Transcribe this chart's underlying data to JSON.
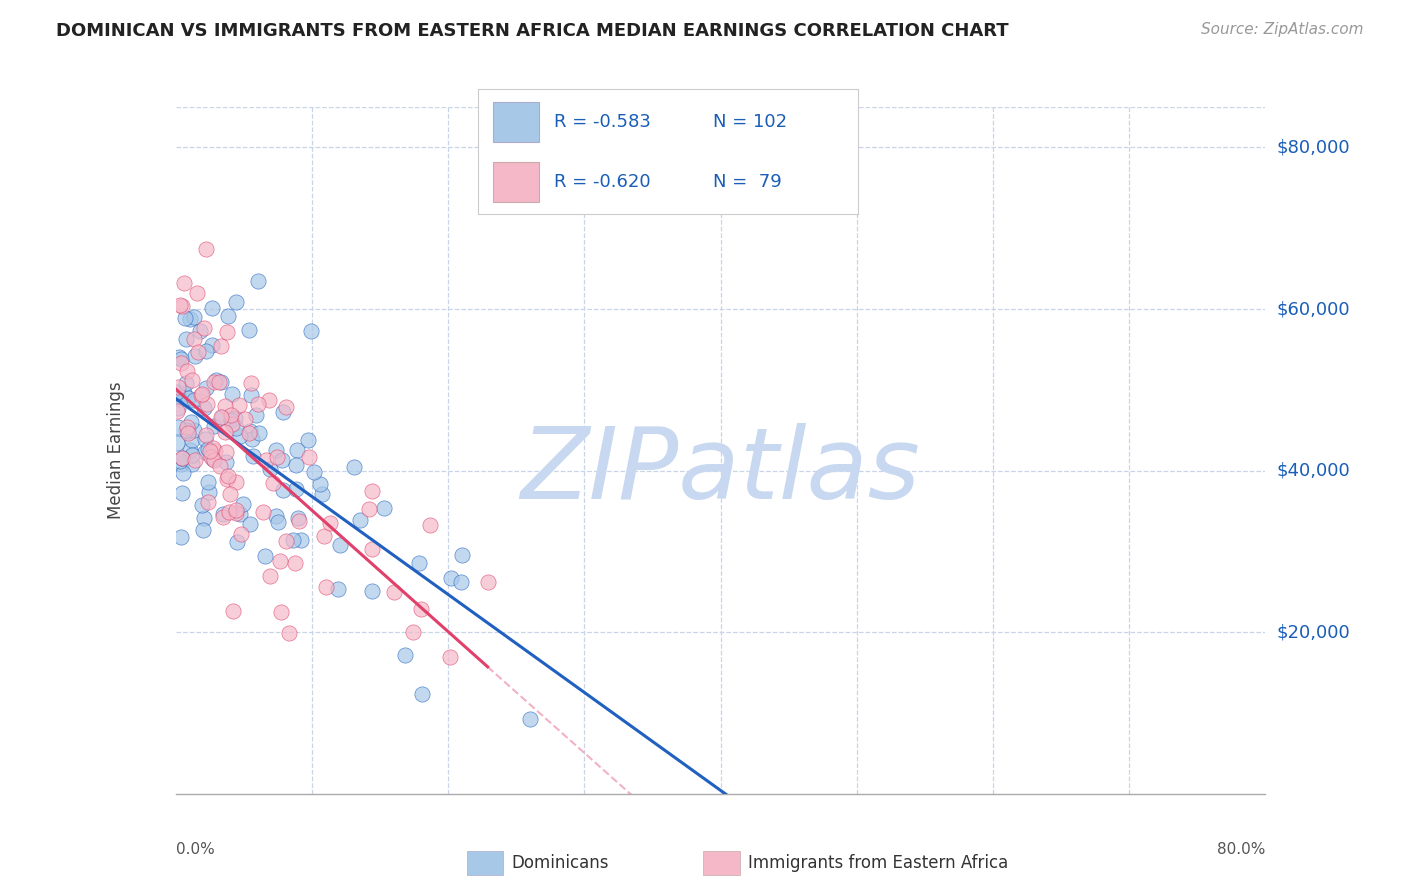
{
  "title": "DOMINICAN VS IMMIGRANTS FROM EASTERN AFRICA MEDIAN EARNINGS CORRELATION CHART",
  "source": "Source: ZipAtlas.com",
  "ylabel": "Median Earnings",
  "ytick_labels": [
    "$20,000",
    "$40,000",
    "$60,000",
    "$80,000"
  ],
  "ytick_values": [
    20000,
    40000,
    60000,
    80000
  ],
  "ylim": [
    0,
    85000
  ],
  "xlim": [
    0.0,
    0.8
  ],
  "legend_label1": "Dominicans",
  "legend_label2": "Immigrants from Eastern Africa",
  "R1": "-0.583",
  "N1": "102",
  "R2": "-0.620",
  "N2": " 79",
  "color_blue": "#a8c8e8",
  "color_pink": "#f4b8c8",
  "color_line_blue": "#2060c0",
  "color_line_pink": "#e0406a",
  "color_blue_text": "#1a5eb8",
  "background_color": "#ffffff",
  "grid_color": "#c8d4e8",
  "watermark_color": "#c8d8f0"
}
